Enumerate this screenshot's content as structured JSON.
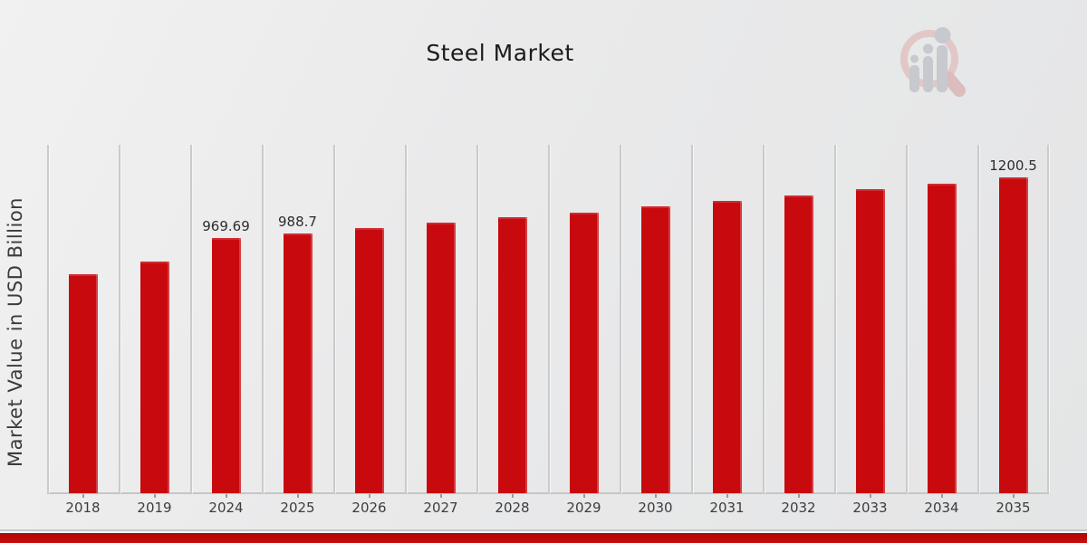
{
  "chart_data": {
    "type": "bar",
    "title": "Steel Market",
    "xlabel": "",
    "ylabel": "Market Value in USD Billion",
    "categories": [
      "2018",
      "2019",
      "2024",
      "2025",
      "2026",
      "2027",
      "2028",
      "2029",
      "2030",
      "2031",
      "2032",
      "2033",
      "2034",
      "2035"
    ],
    "values": [
      833.2,
      880.0,
      969.69,
      988.7,
      1008.1,
      1027.9,
      1048.0,
      1068.6,
      1089.5,
      1110.9,
      1132.7,
      1154.9,
      1177.5,
      1200.5
    ],
    "point_labels": [
      "",
      "",
      "969.69",
      "988.7",
      "",
      "",
      "",
      "",
      "",
      "",
      "",
      "",
      "",
      "1200.5"
    ],
    "ylim": [
      0,
      1325
    ],
    "grid": "vertical-band-separators",
    "legend": "none",
    "bar_color": "#c80a0e"
  },
  "colors": {
    "bar": "#c80a0e",
    "footer_band": "#c90c0c",
    "background": "#e9eaeb",
    "gridline": "#cbcbcb",
    "axis_line": "#c6c6c6",
    "title_text": "#1b1b1b",
    "axis_text": "#3d3d3d"
  },
  "watermark": {
    "icon": "magnifier-bar-chart-logo"
  }
}
